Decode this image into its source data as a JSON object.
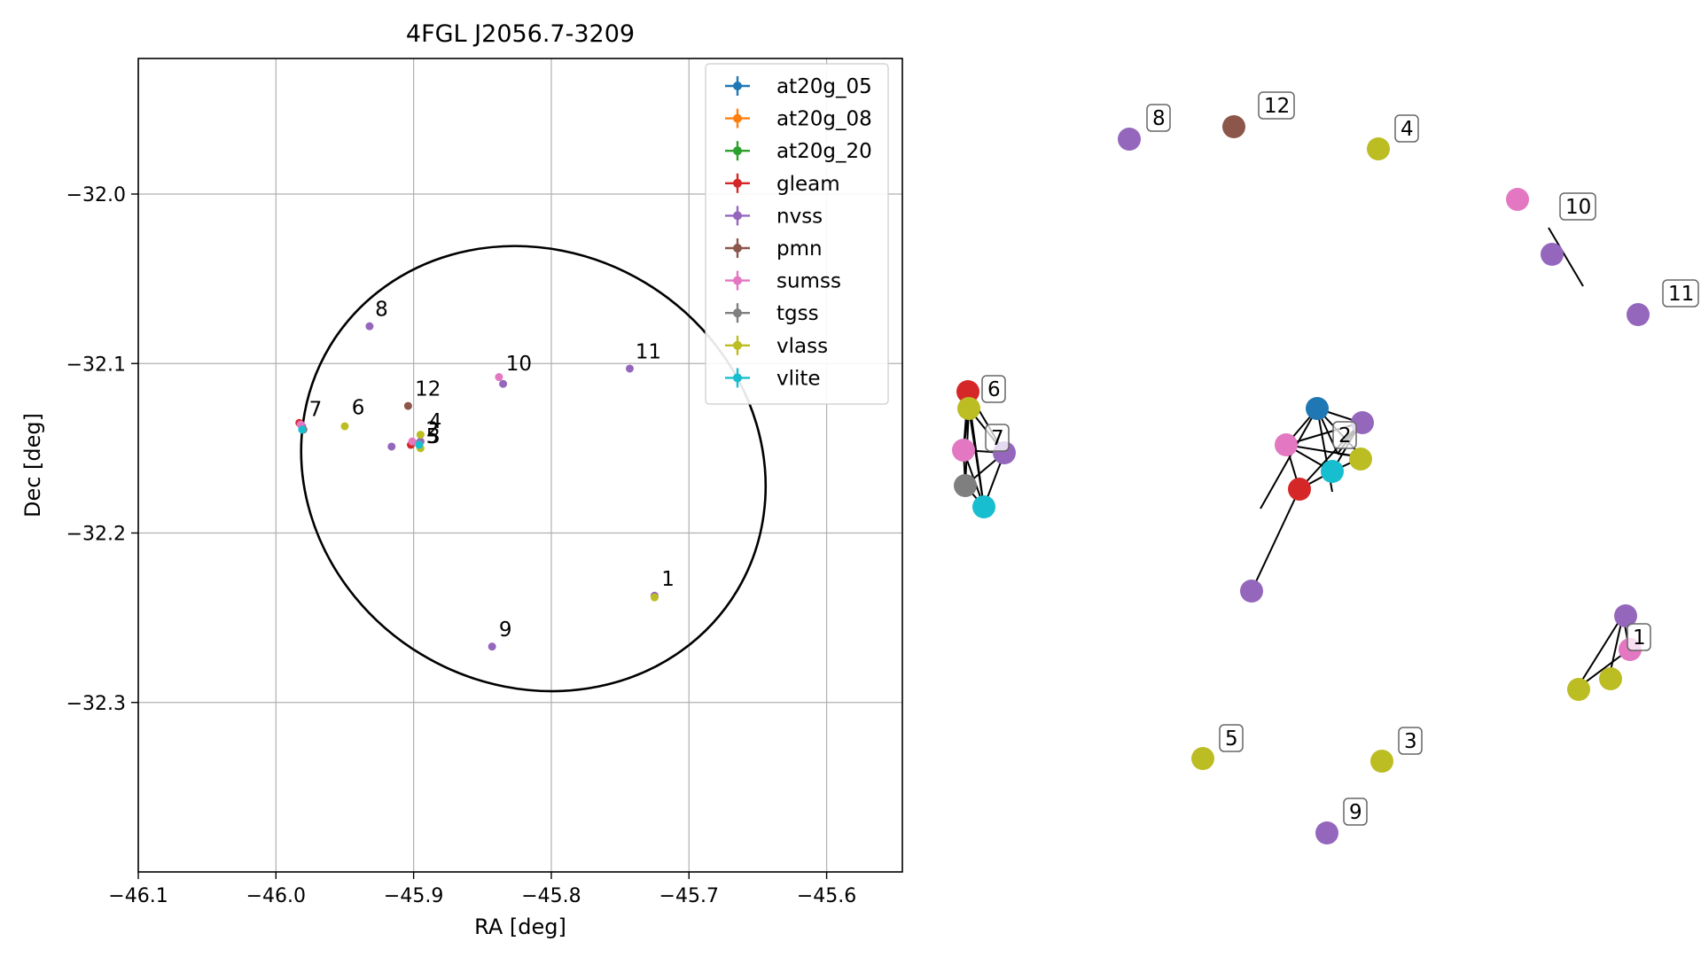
{
  "chart_data": [
    {
      "type": "scatter",
      "title": "4FGL J2056.7-3209",
      "xlabel": "RA [deg]",
      "ylabel": "Dec [deg]",
      "xlim": [
        -46.1,
        -45.545
      ],
      "ylim": [
        -32.4,
        -31.92
      ],
      "xticks": [
        -46.1,
        -46.0,
        -45.9,
        -45.8,
        -45.7,
        -45.6
      ],
      "xtick_labels": [
        "−46.1",
        "−46.0",
        "−45.9",
        "−45.8",
        "−45.7",
        "−45.6"
      ],
      "yticks": [
        -32.0,
        -32.1,
        -32.2,
        -32.3
      ],
      "ytick_labels": [
        "−32.0",
        "−32.1",
        "−32.2",
        "−32.3"
      ],
      "grid": true,
      "legend_position": "top-right",
      "ellipse": {
        "center": [
          -45.813,
          -32.162
        ],
        "semi_axes_deg": [
          0.1725,
          0.128
        ],
        "rotation_deg": 31,
        "color": "#000000"
      },
      "series": [
        {
          "name": "at20g_05",
          "color": "#1f77b4",
          "points": [
            [
              -45.896,
              -32.147
            ]
          ]
        },
        {
          "name": "at20g_08",
          "color": "#ff7f0e",
          "points": []
        },
        {
          "name": "at20g_20",
          "color": "#2ca02c",
          "points": []
        },
        {
          "name": "gleam",
          "color": "#d62728",
          "points": [
            [
              -45.902,
              -32.148
            ],
            [
              -45.983,
              -32.135
            ]
          ]
        },
        {
          "name": "nvss",
          "color": "#9467bd",
          "points": [
            [
              -45.932,
              -32.078
            ],
            [
              -45.835,
              -32.112
            ],
            [
              -45.743,
              -32.103
            ],
            [
              -45.916,
              -32.149
            ],
            [
              -45.895,
              -32.146
            ],
            [
              -45.843,
              -32.267
            ],
            [
              -45.725,
              -32.237
            ],
            [
              -45.981,
              -32.137
            ]
          ]
        },
        {
          "name": "pmn",
          "color": "#8c564b",
          "points": [
            [
              -45.904,
              -32.125
            ]
          ]
        },
        {
          "name": "sumss",
          "color": "#e377c2",
          "points": [
            [
              -45.838,
              -32.108
            ],
            [
              -45.901,
              -32.146
            ],
            [
              -45.982,
              -32.136
            ]
          ]
        },
        {
          "name": "tgss",
          "color": "#7f7f7f",
          "points": [
            [
              -45.98,
              -32.139
            ]
          ]
        },
        {
          "name": "vlass",
          "color": "#bcbd22",
          "points": [
            [
              -45.95,
              -32.137
            ],
            [
              -45.895,
              -32.142
            ],
            [
              -45.895,
              -32.15
            ],
            [
              -45.725,
              -32.238
            ],
            [
              -45.896,
              -32.148
            ]
          ]
        },
        {
          "name": "vlite",
          "color": "#17becf",
          "points": [
            [
              -45.981,
              -32.139
            ],
            [
              -45.896,
              -32.148
            ]
          ]
        }
      ],
      "annotations": [
        {
          "text": "1",
          "x": -45.72,
          "y": -32.231
        },
        {
          "text": "2",
          "x": -45.891,
          "y": -32.143
        },
        {
          "text": "3",
          "x": -45.89,
          "y": -32.147
        },
        {
          "text": "4",
          "x": -45.889,
          "y": -32.138
        },
        {
          "text": "5",
          "x": -45.891,
          "y": -32.147
        },
        {
          "text": "6",
          "x": -45.945,
          "y": -32.13
        },
        {
          "text": "7",
          "x": -45.976,
          "y": -32.131
        },
        {
          "text": "8",
          "x": -45.928,
          "y": -32.072
        },
        {
          "text": "9",
          "x": -45.838,
          "y": -32.261
        },
        {
          "text": "10",
          "x": -45.833,
          "y": -32.104
        },
        {
          "text": "11",
          "x": -45.739,
          "y": -32.097
        },
        {
          "text": "12",
          "x": -45.899,
          "y": -32.119
        }
      ]
    },
    {
      "type": "network",
      "node_colors": {
        "nvss": "#9467bd",
        "pmn": "#8c564b",
        "vlass": "#bcbd22",
        "sumss": "#e377c2",
        "gleam": "#d62728",
        "at20g_05": "#1f77b4",
        "vlite": "#17becf",
        "tgss": "#7f7f7f"
      },
      "labels": [
        "8",
        "12",
        "4",
        "10",
        "11",
        "6",
        "7",
        "2",
        "1",
        "5",
        "3",
        "9"
      ]
    }
  ]
}
